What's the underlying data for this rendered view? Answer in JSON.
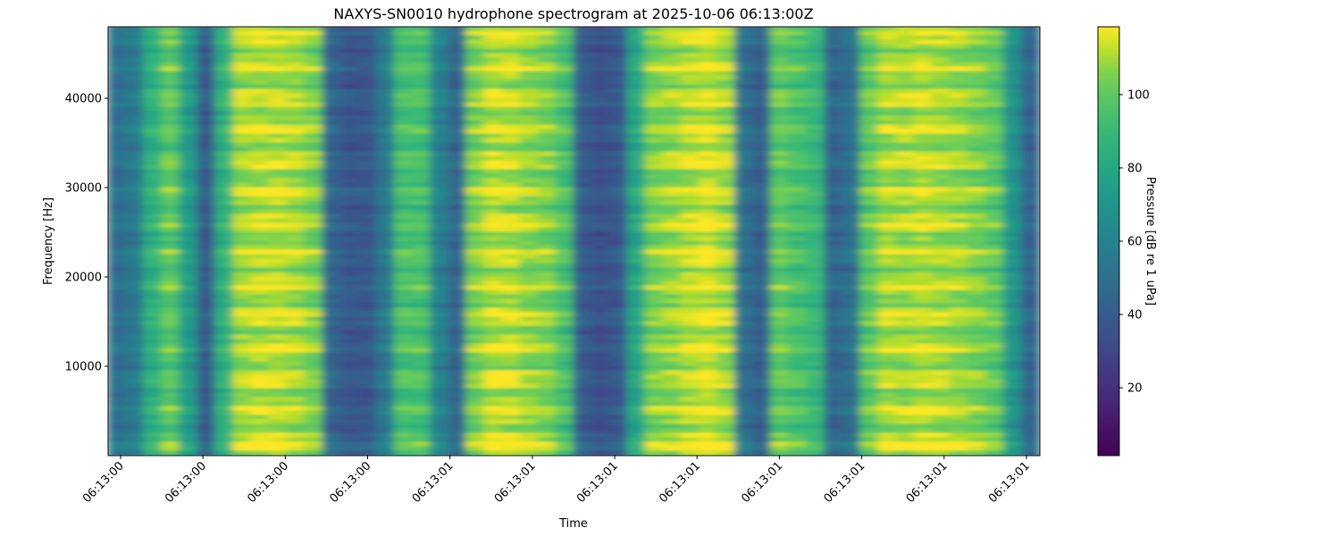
{
  "chart_data": {
    "type": "heatmap",
    "title": "NAXYS-SN0010 hydrophone spectrogram at 2025-10-06 06:13:00Z",
    "xlabel": "Time",
    "ylabel": "Frequency [Hz]",
    "colorbar_label": "Pressure [dB re 1 uPa]",
    "colormap": "viridis",
    "ylim": [
      0,
      48000
    ],
    "yticks": [
      10000,
      20000,
      30000,
      40000
    ],
    "xtick_labels": [
      "06:13:00",
      "06:13:00",
      "06:13:00",
      "06:13:00",
      "06:13:01",
      "06:13:01",
      "06:13:01",
      "06:13:01",
      "06:13:01",
      "06:13:01",
      "06:13:01",
      "06:13:01"
    ],
    "clim": [
      1.5,
      118.5
    ],
    "colorbar_ticks": [
      20,
      40,
      60,
      80,
      100
    ],
    "column_levels_db": [
      50,
      55,
      85,
      100,
      75,
      40,
      85,
      110,
      112,
      112,
      110,
      105,
      45,
      38,
      38,
      55,
      95,
      95,
      60,
      45,
      105,
      112,
      112,
      108,
      105,
      95,
      40,
      35,
      38,
      80,
      105,
      108,
      112,
      115,
      110,
      50,
      42,
      100,
      95,
      90,
      45,
      50,
      100,
      110,
      110,
      112,
      110,
      108,
      105,
      100,
      70,
      45
    ],
    "grid": false
  }
}
